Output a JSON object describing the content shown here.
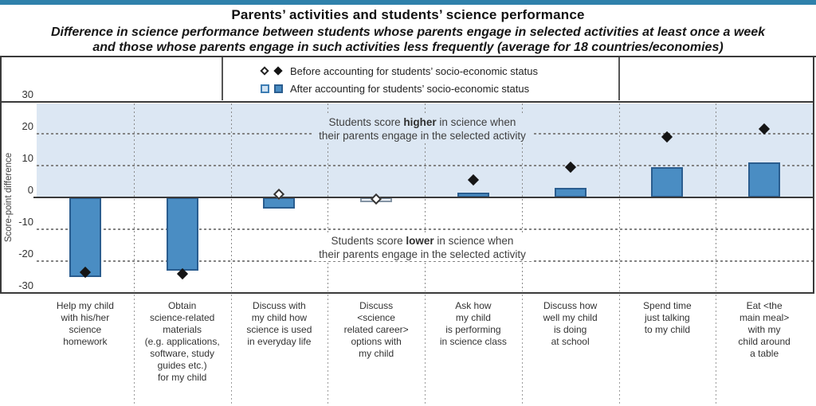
{
  "page": {
    "title": "Parents’ activities and students’ science performance",
    "subtitle": "Difference in science performance between students whose parents engage in selected activities at least once a week\nand those whose parents engage in such activities less frequently (average for 18 countries/economies)"
  },
  "legend": {
    "items": [
      {
        "marker": "diamond-pair-icon",
        "label": "Before accounting for students’ socio-economic status"
      },
      {
        "marker": "square-pair-icon",
        "label": "After accounting for students’ socio-economic status"
      }
    ]
  },
  "chart_data": {
    "type": "bar",
    "title": "Parents’ activities and students’ science performance",
    "ylabel": "Score-point difference",
    "xlabel": "",
    "ylim": [
      -30,
      30
    ],
    "yticks": [
      30,
      20,
      10,
      0,
      -10,
      -20,
      -30
    ],
    "grid": "dashed horizontal lines at ±10 and ±20, dashed vertical category separators, shaded band above zero",
    "legend_position": "top-center",
    "categories": [
      "Help my child\nwith his/her\nscience\nhomework",
      "Obtain\nscience-related\nmaterials\n(e.g. applications,\nsoftware, study\nguides etc.)\nfor my child",
      "Discuss with\nmy child how\nscience is used\nin everyday life",
      "Discuss\n<science\nrelated career>\noptions with\nmy child",
      "Ask how\nmy child\nis performing\nin science class",
      "Discuss how\nwell my child\nis doing\nat school",
      "Spend time\njust talking\nto my child",
      "Eat <the\nmain meal>\nwith my\nchild around\na table"
    ],
    "series": [
      {
        "name": "Before accounting for students’ socio-economic status",
        "marker": "diamond",
        "values": [
          -23.5,
          -24,
          1,
          -0.5,
          5.5,
          9.5,
          19,
          21.5
        ],
        "filled_marker": [
          true,
          true,
          false,
          false,
          true,
          true,
          true,
          true
        ]
      },
      {
        "name": "After accounting for students’ socio-economic status",
        "marker": "bar",
        "values": [
          -25,
          -23,
          -3.5,
          -1.5,
          1.5,
          3,
          9.5,
          11
        ],
        "filled_marker": [
          true,
          true,
          true,
          false,
          true,
          true,
          true,
          true
        ]
      }
    ],
    "annotations": [
      {
        "pre": "Students score ",
        "bold": "higher",
        "post": " in science when",
        "line2": "their parents engage in the selected activity"
      },
      {
        "pre": "Students score ",
        "bold": "lower",
        "post": " in science when",
        "line2": "their parents engage in the selected activity"
      }
    ]
  },
  "colors": {
    "top_strip": "#2f81ab",
    "bar_fill": "#4a8dc3",
    "bar_border": "#2a5d8f",
    "nonsig_bar_fill": "#eef3f9",
    "nonsig_bar_border": "#8494a4",
    "positive_region": "#dce7f3",
    "diamond_filled": "#151515"
  }
}
